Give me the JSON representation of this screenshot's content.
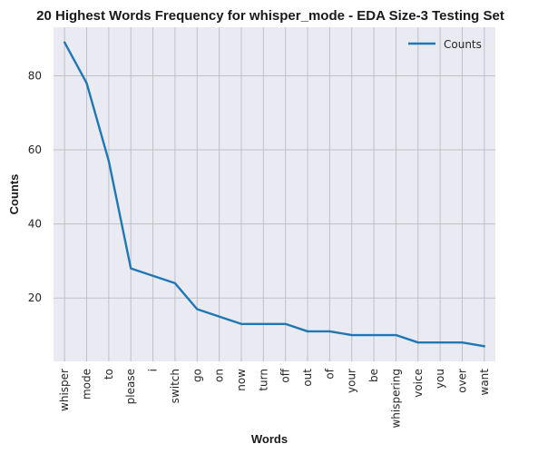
{
  "chart_data": {
    "type": "line",
    "title": "20 Highest Words Frequency for whisper_mode - EDA Size-3 Testing Set",
    "xlabel": "Words",
    "ylabel": "Counts",
    "categories": [
      "whisper",
      "mode",
      "to",
      "please",
      "i",
      "switch",
      "go",
      "on",
      "now",
      "turn",
      "off",
      "out",
      "of",
      "your",
      "be",
      "whispering",
      "voice",
      "you",
      "over",
      "want"
    ],
    "series": [
      {
        "name": "Counts",
        "values": [
          89,
          78,
          57,
          28,
          26,
          24,
          17,
          15,
          13,
          13,
          13,
          11,
          11,
          10,
          10,
          10,
          8,
          8,
          8,
          7
        ]
      }
    ],
    "ylim": [
      2.9,
      93.1
    ],
    "yticks": [
      20,
      40,
      60,
      80
    ],
    "grid": true,
    "legend_position": "top-right",
    "colors": {
      "line": "#1f77b4",
      "plot_bg": "#eaeaf2",
      "grid": "#c0c0c4"
    }
  }
}
